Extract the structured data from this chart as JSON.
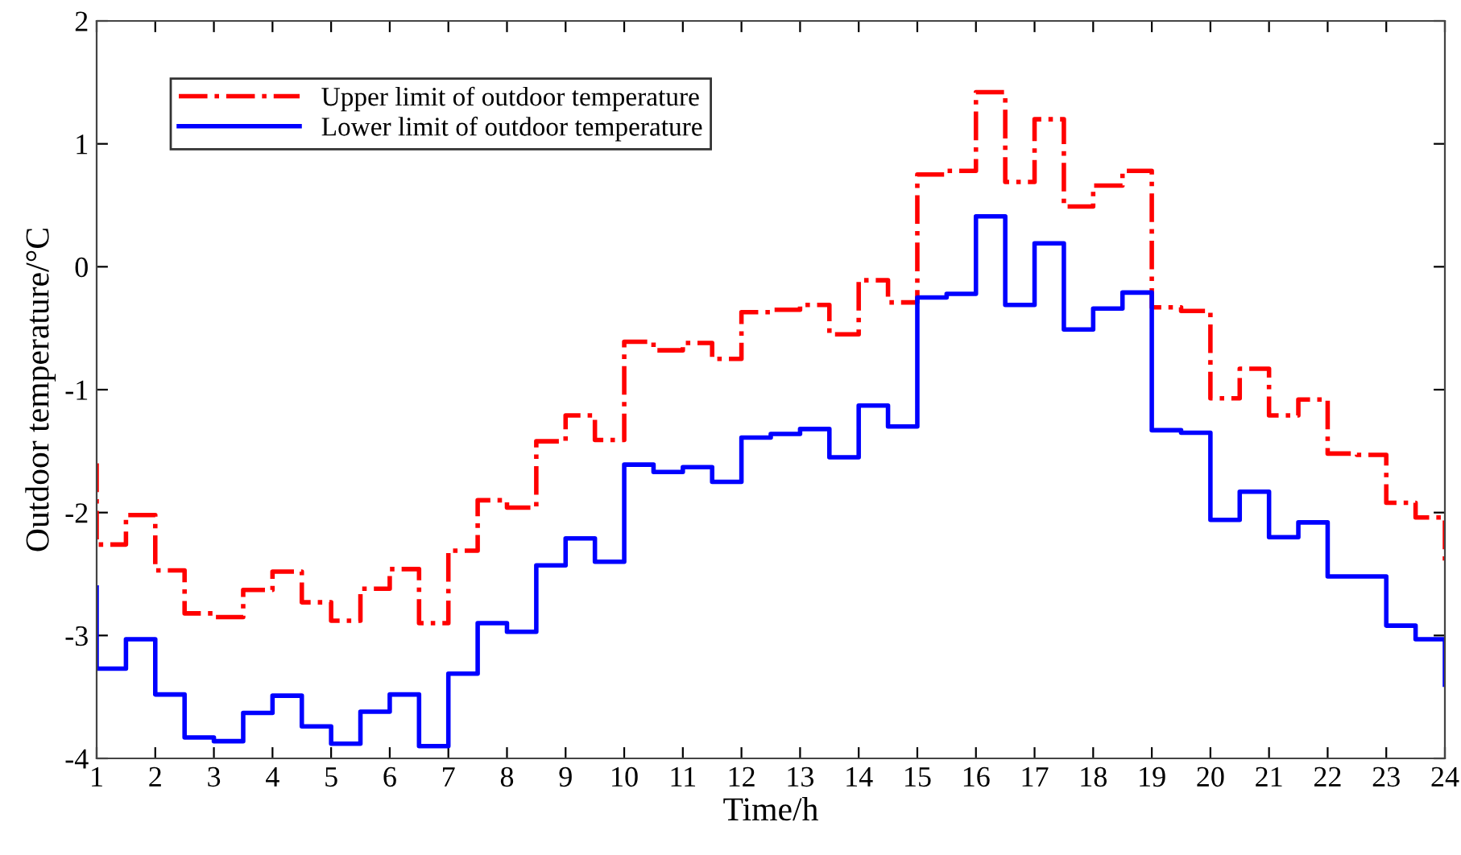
{
  "chart_data": {
    "type": "step",
    "xlabel": "Time/h",
    "ylabel": "Outdoor temperature/°C",
    "x": [
      1,
      1,
      1.5,
      2,
      2.5,
      3,
      3.5,
      4,
      4.5,
      5,
      5.5,
      6,
      6.5,
      7,
      7.5,
      8,
      8.5,
      9,
      9.5,
      10,
      10.5,
      11,
      11.5,
      12,
      12.5,
      13,
      13.5,
      14,
      14.5,
      15,
      15.5,
      16,
      16.5,
      17,
      17.5,
      18,
      18.5,
      19,
      19.5,
      20,
      20.5,
      21,
      21.5,
      22,
      22.5,
      23,
      23.5,
      24
    ],
    "series": [
      {
        "name": "Upper limit of outdoor temperature",
        "color": "#ff0000",
        "line_style": "dashdot",
        "values": [
          -1.6,
          -2.26,
          -2.02,
          -2.47,
          -2.82,
          -2.85,
          -2.63,
          -2.48,
          -2.73,
          -2.88,
          -2.62,
          -2.46,
          -2.9,
          -2.31,
          -1.9,
          -1.96,
          -1.42,
          -1.21,
          -1.41,
          -0.61,
          -0.68,
          -0.62,
          -0.75,
          -0.37,
          -0.35,
          -0.31,
          -0.55,
          -0.11,
          -0.29,
          0.75,
          0.78,
          1.42,
          0.69,
          1.2,
          0.49,
          0.66,
          0.78,
          -0.33,
          -0.36,
          -1.07,
          -0.83,
          -1.21,
          -1.08,
          -1.52,
          -1.53,
          -1.92,
          -2.04,
          -2.39
        ]
      },
      {
        "name": "Lower limit of outdoor temperature",
        "color": "#0000ff",
        "line_style": "solid",
        "values": [
          -2.61,
          -3.27,
          -3.03,
          -3.48,
          -3.83,
          -3.86,
          -3.63,
          -3.49,
          -3.74,
          -3.88,
          -3.62,
          -3.48,
          -3.9,
          -3.31,
          -2.9,
          -2.97,
          -2.43,
          -2.21,
          -2.4,
          -1.61,
          -1.67,
          -1.63,
          -1.75,
          -1.39,
          -1.36,
          -1.32,
          -1.55,
          -1.13,
          -1.3,
          -0.25,
          -0.22,
          0.41,
          -0.31,
          0.19,
          -0.51,
          -0.34,
          -0.21,
          -1.33,
          -1.35,
          -2.06,
          -1.83,
          -2.2,
          -2.08,
          -2.52,
          -2.52,
          -2.92,
          -3.03,
          -3.4
        ]
      }
    ],
    "xlim": [
      1,
      24
    ],
    "xticks": [
      1,
      2,
      3,
      4,
      5,
      6,
      7,
      8,
      9,
      10,
      11,
      12,
      13,
      14,
      15,
      16,
      17,
      18,
      19,
      20,
      21,
      22,
      23,
      24
    ],
    "ylim": [
      -4,
      2
    ],
    "yticks": [
      -4,
      -3,
      -2,
      -1,
      0,
      1,
      2
    ],
    "grid": false,
    "legend": "top left",
    "marker": "none"
  }
}
